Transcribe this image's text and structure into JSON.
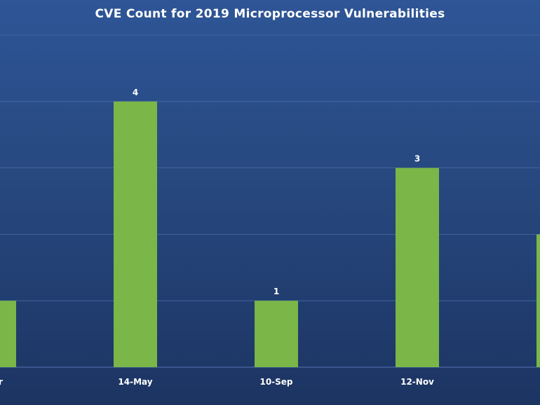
{
  "chart_data": {
    "type": "bar",
    "title": "CVE Count for 2019 Microprocessor Vulnerabilities",
    "categories": [
      "Apr",
      "14-May",
      "10-Sep",
      "12-Nov",
      ""
    ],
    "values": [
      1,
      4,
      1,
      3,
      2
    ],
    "data_labels": [
      "",
      "4",
      "1",
      "3",
      ""
    ],
    "xlabel": "",
    "ylabel": "",
    "ylim": [
      0,
      5
    ],
    "grid": true,
    "legend": "none",
    "colors": {
      "bar": "#7ab648",
      "gridline": "#4a6aa3",
      "text": "#ffffff"
    }
  }
}
